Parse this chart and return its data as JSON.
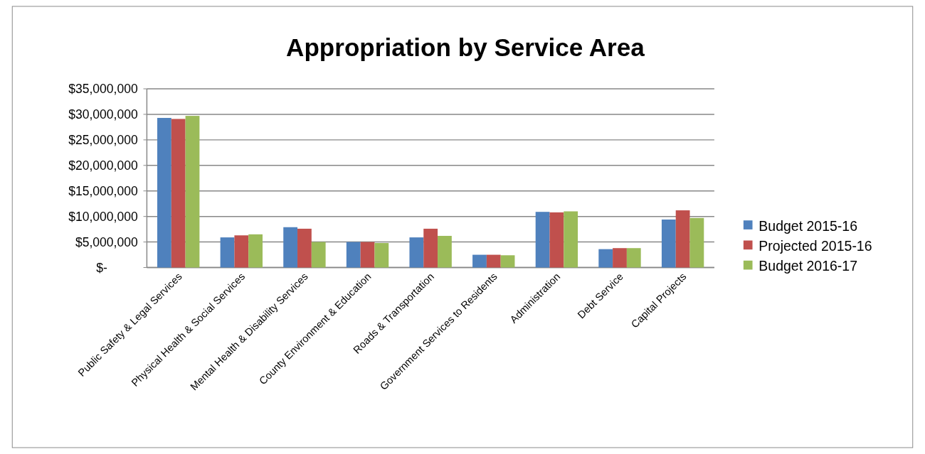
{
  "chart_data": {
    "type": "bar",
    "title": "Appropriation by Service Area",
    "categories": [
      "Public Safety & Legal Services",
      "Physical Health & Social Services",
      "Mental Health & Disability Services",
      "County Environment & Education",
      "Roads & Transportation",
      "Government Services to Residents",
      "Administration",
      "Debt Service",
      "Capital Projects"
    ],
    "series": [
      {
        "name": "Budget 2015-16",
        "color": "#4f81bd",
        "values": [
          29300000,
          5900000,
          7900000,
          5000000,
          5900000,
          2500000,
          10900000,
          3600000,
          9400000
        ]
      },
      {
        "name": "Projected 2015-16",
        "color": "#c0504d",
        "values": [
          29100000,
          6300000,
          7600000,
          5000000,
          7600000,
          2500000,
          10800000,
          3800000,
          11200000
        ]
      },
      {
        "name": "Budget 2016-17",
        "color": "#9bbb59",
        "values": [
          29700000,
          6500000,
          5000000,
          4800000,
          6200000,
          2400000,
          11000000,
          3800000,
          9700000
        ]
      }
    ],
    "ylim": [
      0,
      35000000
    ],
    "yticks": [
      {
        "value": 0,
        "label": "$-"
      },
      {
        "value": 5000000,
        "label": "$5,000,000"
      },
      {
        "value": 10000000,
        "label": "$10,000,000"
      },
      {
        "value": 15000000,
        "label": "$15,000,000"
      },
      {
        "value": 20000000,
        "label": "$20,000,000"
      },
      {
        "value": 25000000,
        "label": "$25,000,000"
      },
      {
        "value": 30000000,
        "label": "$30,000,000"
      },
      {
        "value": 35000000,
        "label": "$35,000,000"
      }
    ],
    "grid": "y",
    "legend": "right"
  }
}
